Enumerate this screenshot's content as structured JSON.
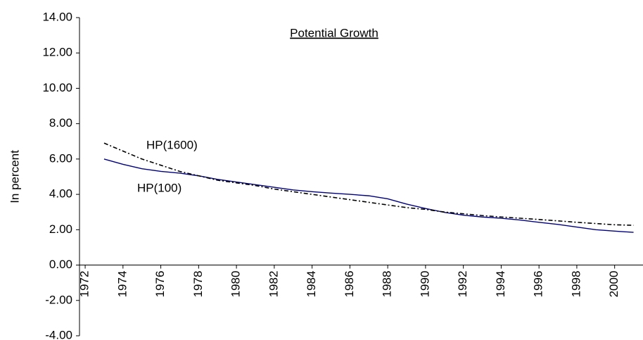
{
  "chart_data": {
    "type": "line",
    "title": "Potential Growth",
    "ylabel": "In percent",
    "x": [
      1973,
      1974,
      1975,
      1976,
      1977,
      1978,
      1979,
      1980,
      1981,
      1982,
      1983,
      1984,
      1985,
      1986,
      1987,
      1988,
      1989,
      1990,
      1991,
      1992,
      1993,
      1994,
      1995,
      1996,
      1997,
      1998,
      1999,
      2000,
      2001
    ],
    "series": [
      {
        "name": "HP(100)",
        "color": "#000080",
        "dash": false,
        "values": [
          6.0,
          5.7,
          5.45,
          5.3,
          5.2,
          5.05,
          4.85,
          4.7,
          4.55,
          4.4,
          4.25,
          4.15,
          4.07,
          4.0,
          3.92,
          3.75,
          3.45,
          3.2,
          2.98,
          2.82,
          2.72,
          2.65,
          2.55,
          2.42,
          2.3,
          2.15,
          2.0,
          1.92,
          1.85
        ]
      },
      {
        "name": "HP(1600)",
        "color": "#000000",
        "dash": true,
        "values": [
          6.9,
          6.45,
          6.0,
          5.65,
          5.3,
          5.05,
          4.8,
          4.65,
          4.5,
          4.3,
          4.15,
          4.0,
          3.85,
          3.7,
          3.55,
          3.4,
          3.25,
          3.15,
          3.0,
          2.9,
          2.8,
          2.72,
          2.65,
          2.58,
          2.5,
          2.42,
          2.35,
          2.28,
          2.25
        ]
      }
    ],
    "xlim": [
      1971.7,
      2001.5
    ],
    "xticks": [
      1972,
      1974,
      1976,
      1978,
      1980,
      1982,
      1984,
      1986,
      1988,
      1990,
      1992,
      1994,
      1996,
      1998,
      2000
    ],
    "ylim": [
      -4,
      14
    ],
    "yticks": [
      {
        "value": -4,
        "label": "-4.00"
      },
      {
        "value": -2,
        "label": "-2.00"
      },
      {
        "value": 0,
        "label": "0.00"
      },
      {
        "value": 2,
        "label": "2.00"
      },
      {
        "value": 4,
        "label": "4.00"
      },
      {
        "value": 6,
        "label": "6.00"
      },
      {
        "value": 8,
        "label": "8.00"
      },
      {
        "value": 10,
        "label": "10.00"
      },
      {
        "value": 12,
        "label": "12.00"
      },
      {
        "value": 14,
        "label": "14.00"
      }
    ],
    "grid": false
  }
}
